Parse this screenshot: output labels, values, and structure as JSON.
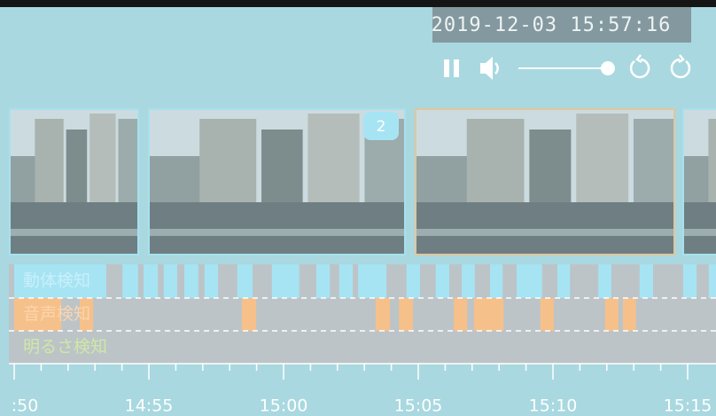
{
  "player": {
    "timestamp": "2019-12-03 15:57:16",
    "volume": 98,
    "volume_range": [
      0,
      100
    ]
  },
  "thumbnails": {
    "badge": "2",
    "selected": 2,
    "count": 4
  },
  "timeline": {
    "xlim": [
      "14:50",
      "15:15"
    ],
    "xticks": [
      {
        "value": "14:50",
        "label": ":50"
      },
      "14:55",
      "15:00",
      "15:05",
      "15:10",
      "15:15"
    ],
    "minor_ticks": [
      "14:51",
      "14:52",
      "14:53",
      "14:54",
      "14:56",
      "14:57",
      "14:58",
      "14:59",
      "15:01",
      "15:02",
      "15:03",
      "15:04",
      "15:06",
      "15:07",
      "15:08",
      "15:09",
      "15:11",
      "15:12",
      "15:13",
      "15:14"
    ],
    "rows": [
      {
        "name": "動体検知",
        "color": "#a6e4f3",
        "label_color": "#c9effa",
        "events": [
          [
            "14:50:00",
            "14:53:25"
          ],
          [
            "14:54:01",
            "14:54:36"
          ],
          [
            "14:54:48",
            "14:55:20"
          ],
          [
            "14:55:33",
            "14:56:03"
          ],
          [
            "14:56:19",
            "14:56:50"
          ],
          [
            "14:57:04",
            "14:57:34"
          ],
          [
            "14:58:17",
            "14:58:51"
          ],
          [
            "14:59:34",
            "15:00:35"
          ],
          [
            "15:01:13",
            "15:01:43"
          ],
          [
            "15:02:04",
            "15:02:34"
          ],
          [
            "15:02:46",
            "15:03:49"
          ],
          [
            "15:04:34",
            "15:05:04"
          ],
          [
            "15:05:39",
            "15:06:09"
          ],
          [
            "15:06:37",
            "15:07:06"
          ],
          [
            "15:07:40",
            "15:08:08"
          ],
          [
            "15:08:39",
            "15:09:36"
          ],
          [
            "15:10:10",
            "15:10:38"
          ],
          [
            "15:11:41",
            "15:12:10"
          ],
          [
            "15:13:13",
            "15:13:43"
          ],
          [
            "15:14:50",
            "15:15:20"
          ],
          [
            "15:15:47",
            "15:16:03"
          ]
        ]
      },
      {
        "name": "音声検知",
        "color": "#f6c08a",
        "label_color": "#fbd5ad",
        "events": [
          [
            "14:50:00",
            "14:51:45"
          ],
          [
            "14:52:26",
            "14:52:56"
          ],
          [
            "14:58:27",
            "14:58:59"
          ],
          [
            "15:03:25",
            "15:03:57"
          ],
          [
            "15:04:17",
            "15:04:48"
          ],
          [
            "15:06:19",
            "15:06:49"
          ],
          [
            "15:07:04",
            "15:08:10"
          ],
          [
            "15:09:32",
            "15:10:02"
          ],
          [
            "15:11:56",
            "15:12:26"
          ],
          [
            "15:12:36",
            "15:13:05"
          ]
        ]
      },
      {
        "name": "明るさ検知",
        "color": "#c8e6a0",
        "label_color": "#cfe8a6",
        "events": []
      }
    ]
  }
}
